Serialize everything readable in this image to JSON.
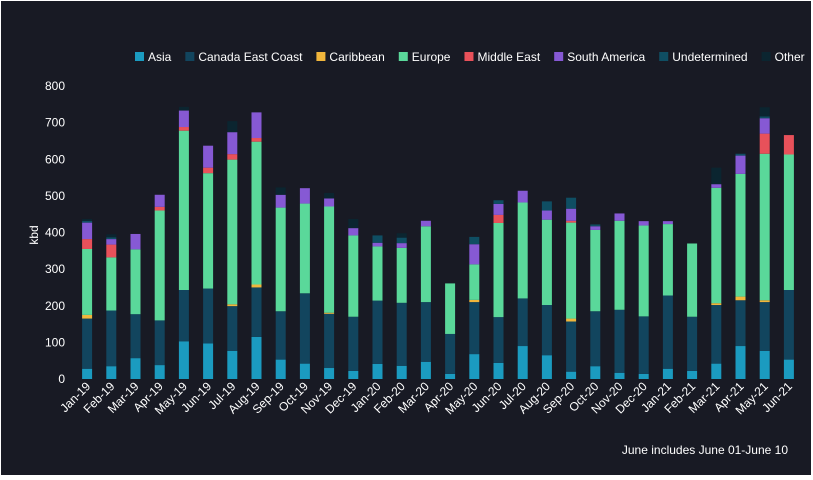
{
  "chart_data": {
    "type": "bar",
    "stacked": true,
    "title": "",
    "xlabel": "",
    "ylabel": "kbd",
    "ylim": [
      0,
      800
    ],
    "yticks": [
      0,
      100,
      200,
      300,
      400,
      500,
      600,
      700,
      800
    ],
    "grid": false,
    "legend_position": "top",
    "footnote": "June includes June 01-June 10",
    "categories": [
      "Jan-19",
      "Feb-19",
      "Mar-19",
      "Apr-19",
      "May-19",
      "Jun-19",
      "Jul-19",
      "Aug-19",
      "Sep-19",
      "Oct-19",
      "Nov-19",
      "Dec-19",
      "Jan-20",
      "Feb-20",
      "Mar-20",
      "Apr-20",
      "May-20",
      "Jun-20",
      "Jul-20",
      "Aug-20",
      "Sep-20",
      "Oct-20",
      "Nov-20",
      "Dec-20",
      "Jan-21",
      "Feb-21",
      "Mar-21",
      "Apr-21",
      "May-21",
      "Jun-21"
    ],
    "series": [
      {
        "name": "Asia",
        "color": "#1b9bc0",
        "values": [
          28,
          35,
          57,
          38,
          103,
          97,
          77,
          115,
          53,
          42,
          30,
          22,
          41,
          36,
          47,
          14,
          68,
          44,
          90,
          65,
          20,
          35,
          17,
          14,
          28,
          22,
          42,
          90,
          77,
          53
        ]
      },
      {
        "name": "Canada East Coast",
        "color": "#12455e",
        "values": [
          137,
          152,
          120,
          122,
          140,
          150,
          122,
          135,
          132,
          192,
          148,
          148,
          173,
          172,
          163,
          109,
          142,
          125,
          130,
          137,
          137,
          150,
          172,
          157,
          200,
          148,
          160,
          125,
          133,
          190
        ]
      },
      {
        "name": "Caribbean",
        "color": "#f0b63c",
        "values": [
          10,
          0,
          0,
          0,
          0,
          0,
          5,
          8,
          0,
          0,
          3,
          0,
          0,
          0,
          0,
          0,
          6,
          0,
          0,
          0,
          8,
          0,
          0,
          0,
          0,
          0,
          5,
          10,
          5,
          0
        ]
      },
      {
        "name": "Europe",
        "color": "#5ad89a",
        "values": [
          180,
          145,
          177,
          300,
          435,
          315,
          395,
          390,
          283,
          245,
          290,
          222,
          148,
          150,
          207,
          138,
          97,
          257,
          262,
          233,
          262,
          222,
          243,
          248,
          195,
          200,
          315,
          335,
          400,
          370
        ]
      },
      {
        "name": "Middle East",
        "color": "#e8515a",
        "values": [
          27,
          35,
          0,
          10,
          10,
          15,
          15,
          10,
          0,
          0,
          0,
          0,
          0,
          0,
          0,
          0,
          0,
          22,
          0,
          0,
          5,
          0,
          0,
          0,
          0,
          0,
          0,
          0,
          55,
          53
        ]
      },
      {
        "name": "South America",
        "color": "#8659d4",
        "values": [
          45,
          15,
          42,
          33,
          45,
          60,
          60,
          70,
          35,
          42,
          22,
          20,
          10,
          13,
          15,
          0,
          55,
          30,
          32,
          25,
          33,
          10,
          20,
          12,
          8,
          0,
          10,
          50,
          42,
          0
        ]
      },
      {
        "name": "Undetermined",
        "color": "#0f4e63",
        "values": [
          5,
          5,
          0,
          0,
          0,
          0,
          0,
          0,
          0,
          0,
          0,
          0,
          20,
          15,
          0,
          0,
          20,
          10,
          0,
          25,
          30,
          5,
          0,
          0,
          0,
          0,
          0,
          5,
          5,
          0
        ]
      },
      {
        "name": "Other",
        "color": "#0b2530",
        "values": [
          5,
          8,
          0,
          0,
          10,
          0,
          30,
          0,
          20,
          0,
          15,
          25,
          0,
          12,
          0,
          0,
          0,
          0,
          0,
          0,
          0,
          0,
          0,
          0,
          0,
          0,
          45,
          0,
          25,
          0
        ]
      }
    ]
  }
}
